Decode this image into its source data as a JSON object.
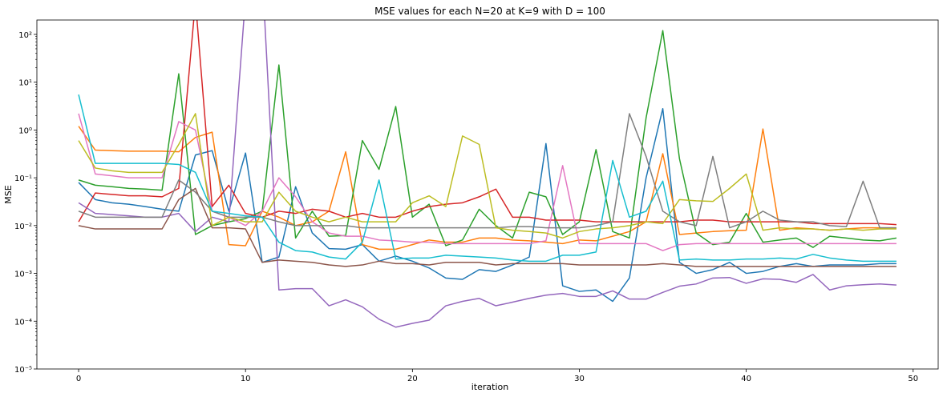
{
  "chart_data": {
    "type": "line",
    "title": "MSE values for each N=20 at K=9 with D = 100",
    "xlabel": "iteration",
    "ylabel": "MSE",
    "xlim": [
      -2.5,
      51.5
    ],
    "ylim": [
      1e-05,
      200
    ],
    "yscale": "log",
    "grid": false,
    "legend": "none",
    "x_ticks": [
      0,
      10,
      20,
      30,
      40,
      50
    ],
    "x_tick_labels": [
      "0",
      "10",
      "20",
      "30",
      "40",
      "50"
    ],
    "y_ticks": [
      1e-05,
      0.0001,
      0.001,
      0.01,
      0.1,
      1,
      10,
      100
    ],
    "y_tick_labels": [
      "10⁻⁵",
      "10⁻⁴",
      "10⁻³",
      "10⁻²",
      "10⁻¹",
      "10⁰",
      "10¹",
      "10²"
    ],
    "x": [
      0,
      1,
      2,
      3,
      4,
      5,
      6,
      7,
      8,
      9,
      10,
      11,
      12,
      13,
      14,
      15,
      16,
      17,
      18,
      19,
      20,
      21,
      22,
      23,
      24,
      25,
      26,
      27,
      28,
      29,
      30,
      31,
      32,
      33,
      34,
      35,
      36,
      37,
      38,
      39,
      40,
      41,
      42,
      43,
      44,
      45,
      46,
      47,
      48,
      49
    ],
    "series": [
      {
        "color": "#1f77b4",
        "values": [
          0.08,
          0.035,
          0.03,
          0.028,
          0.025,
          0.022,
          0.02,
          0.3,
          0.37,
          0.02,
          0.33,
          0.0017,
          0.0022,
          0.065,
          0.007,
          0.0033,
          0.0032,
          0.004,
          0.0018,
          0.0023,
          0.0018,
          0.0013,
          0.0008,
          0.00075,
          0.0012,
          0.0011,
          0.0015,
          0.0022,
          0.52,
          0.00055,
          0.00042,
          0.00045,
          0.00026,
          0.0008,
          0.1,
          2.8,
          0.0017,
          0.001,
          0.0012,
          0.0017,
          0.001,
          0.0011,
          0.0014,
          0.0016,
          0.0014,
          0.0015,
          0.0015,
          0.0015,
          0.0016,
          0.0016
        ]
      },
      {
        "color": "#ff7f0e",
        "values": [
          1.2,
          0.38,
          0.37,
          0.36,
          0.36,
          0.36,
          0.35,
          0.7,
          0.9,
          0.004,
          0.0038,
          0.02,
          0.015,
          0.01,
          0.012,
          0.02,
          0.35,
          0.004,
          0.0032,
          0.0032,
          0.004,
          0.005,
          0.0045,
          0.0045,
          0.0055,
          0.0055,
          0.005,
          0.0048,
          0.0045,
          0.0042,
          0.005,
          0.0048,
          0.006,
          0.0075,
          0.012,
          0.32,
          0.0065,
          0.007,
          0.0075,
          0.0078,
          0.008,
          1.05,
          0.008,
          0.009,
          0.0085,
          0.008,
          0.0085,
          0.009,
          0.009,
          0.009
        ]
      },
      {
        "color": "#2ca02c",
        "values": [
          0.09,
          0.07,
          0.065,
          0.06,
          0.058,
          0.055,
          15,
          0.0065,
          0.01,
          0.012,
          0.014,
          0.02,
          23,
          0.0055,
          0.02,
          0.006,
          0.0062,
          0.6,
          0.15,
          3.1,
          0.015,
          0.028,
          0.0038,
          0.005,
          0.022,
          0.01,
          0.0055,
          0.05,
          0.04,
          0.0065,
          0.012,
          0.39,
          0.0075,
          0.0055,
          1.8,
          120,
          0.25,
          0.007,
          0.004,
          0.0045,
          0.018,
          0.0045,
          0.005,
          0.0055,
          0.0035,
          0.006,
          0.0055,
          0.005,
          0.0048,
          0.0055
        ]
      },
      {
        "color": "#d62728",
        "values": [
          0.012,
          0.048,
          0.045,
          0.042,
          0.042,
          0.04,
          0.06,
          500,
          0.025,
          0.07,
          0.018,
          0.015,
          0.02,
          0.018,
          0.022,
          0.02,
          0.015,
          0.018,
          0.015,
          0.015,
          0.02,
          0.025,
          0.028,
          0.03,
          0.04,
          0.058,
          0.015,
          0.015,
          0.013,
          0.013,
          0.013,
          0.012,
          0.012,
          0.012,
          0.012,
          0.012,
          0.012,
          0.013,
          0.013,
          0.012,
          0.012,
          0.012,
          0.012,
          0.012,
          0.011,
          0.011,
          0.011,
          0.011,
          0.011,
          0.0105
        ]
      },
      {
        "color": "#9467bd",
        "values": [
          0.03,
          0.018,
          0.017,
          0.016,
          0.015,
          0.015,
          0.018,
          0.0075,
          0.015,
          0.012,
          600,
          2000,
          0.00045,
          0.00048,
          0.00048,
          0.00021,
          0.00028,
          0.0002,
          0.00011,
          7.5e-05,
          9e-05,
          0.000105,
          0.00021,
          0.00026,
          0.0003,
          0.00021,
          0.00025,
          0.0003,
          0.00035,
          0.00038,
          0.00033,
          0.00033,
          0.00043,
          0.00029,
          0.00029,
          0.0004,
          0.00054,
          0.0006,
          0.0008,
          0.00082,
          0.00062,
          0.00077,
          0.00075,
          0.00065,
          0.00095,
          0.00045,
          0.00055,
          0.00058,
          0.0006,
          0.00057
        ]
      },
      {
        "color": "#8c564b",
        "values": [
          0.01,
          0.0085,
          0.0085,
          0.0085,
          0.0085,
          0.0085,
          0.035,
          0.06,
          0.009,
          0.009,
          0.0085,
          0.0017,
          0.0019,
          0.0018,
          0.0017,
          0.0015,
          0.0014,
          0.0015,
          0.0018,
          0.0016,
          0.0016,
          0.0015,
          0.0017,
          0.0017,
          0.0017,
          0.0015,
          0.0016,
          0.0016,
          0.0016,
          0.0016,
          0.0015,
          0.0015,
          0.0015,
          0.0015,
          0.0015,
          0.0016,
          0.0015,
          0.0014,
          0.0014,
          0.0014,
          0.0014,
          0.0014,
          0.0014,
          0.0014,
          0.0014,
          0.0014,
          0.0014,
          0.0014,
          0.0014,
          0.0014
        ]
      },
      {
        "color": "#e377c2",
        "values": [
          2.2,
          0.12,
          0.11,
          0.1,
          0.1,
          0.1,
          1.5,
          1,
          0.02,
          0.015,
          0.01,
          0.02,
          0.1,
          0.04,
          0.012,
          0.007,
          0.006,
          0.006,
          0.005,
          0.0048,
          0.0045,
          0.0045,
          0.0042,
          0.0042,
          0.0042,
          0.0042,
          0.0042,
          0.0042,
          0.0048,
          0.18,
          0.0042,
          0.0042,
          0.0042,
          0.0042,
          0.0042,
          0.003,
          0.004,
          0.0042,
          0.0042,
          0.0042,
          0.0042,
          0.0042,
          0.0042,
          0.0042,
          0.0042,
          0.0042,
          0.0042,
          0.0042,
          0.0042,
          0.0042
        ]
      },
      {
        "color": "#7f7f7f",
        "values": [
          0.02,
          0.015,
          0.015,
          0.015,
          0.015,
          0.015,
          0.09,
          0.05,
          0.02,
          0.015,
          0.015,
          0.015,
          0.012,
          0.01,
          0.01,
          0.01,
          0.01,
          0.009,
          0.009,
          0.009,
          0.009,
          0.009,
          0.009,
          0.009,
          0.009,
          0.009,
          0.0095,
          0.0095,
          0.009,
          0.009,
          0.009,
          0.01,
          0.012,
          2.2,
          0.28,
          0.02,
          0.012,
          0.01,
          0.28,
          0.009,
          0.012,
          0.02,
          0.013,
          0.012,
          0.012,
          0.01,
          0.0095,
          0.085,
          0.009,
          0.009
        ]
      },
      {
        "color": "#bcbd22",
        "values": [
          0.6,
          0.16,
          0.14,
          0.13,
          0.13,
          0.13,
          0.5,
          2.2,
          0.01,
          0.015,
          0.012,
          0.012,
          0.05,
          0.02,
          0.015,
          0.012,
          0.015,
          0.012,
          0.012,
          0.012,
          0.03,
          0.042,
          0.025,
          0.75,
          0.5,
          0.009,
          0.008,
          0.0075,
          0.007,
          0.0055,
          0.0075,
          0.0085,
          0.009,
          0.01,
          0.012,
          0.011,
          0.035,
          0.033,
          0.032,
          0.06,
          0.12,
          0.008,
          0.009,
          0.0085,
          0.0085,
          0.008,
          0.0085,
          0.008,
          0.0085,
          0.0085
        ]
      },
      {
        "color": "#17becf",
        "values": [
          5.5,
          0.2,
          0.2,
          0.2,
          0.2,
          0.2,
          0.19,
          0.13,
          0.02,
          0.018,
          0.016,
          0.015,
          0.0045,
          0.003,
          0.0028,
          0.0022,
          0.002,
          0.0045,
          0.09,
          0.002,
          0.0021,
          0.0021,
          0.0024,
          0.0023,
          0.0022,
          0.0021,
          0.0019,
          0.0018,
          0.0018,
          0.0024,
          0.0024,
          0.0028,
          0.23,
          0.015,
          0.02,
          0.085,
          0.0019,
          0.002,
          0.0019,
          0.0019,
          0.002,
          0.002,
          0.0021,
          0.002,
          0.0025,
          0.0021,
          0.0019,
          0.0018,
          0.0018,
          0.0018
        ]
      }
    ]
  }
}
